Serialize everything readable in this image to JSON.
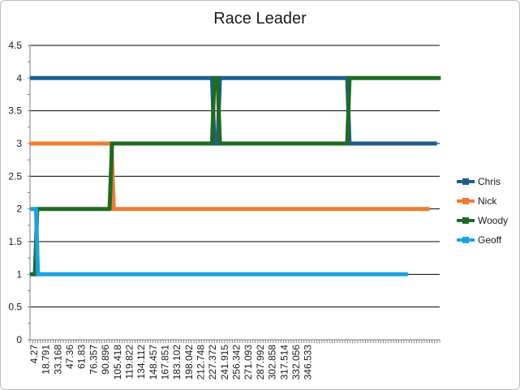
{
  "chart_data": {
    "type": "line",
    "title": "Race Leader",
    "xlabel": "",
    "ylabel": "",
    "ylim": [
      0,
      4.5
    ],
    "yticks": [
      "0",
      "0.5",
      "1",
      "1.5",
      "2",
      "2.5",
      "3",
      "3.5",
      "4",
      "4.5"
    ],
    "x_tick_labels": [
      "4.27",
      "18.791",
      "33.168",
      "47.36",
      "61.83",
      "76.357",
      "90.896",
      "105.418",
      "119.822",
      "134.112",
      "148.457",
      "167.851",
      "183.102",
      "198.042",
      "212.748",
      "227.372",
      "241.915",
      "256.342",
      "271.093",
      "287.992",
      "302.858",
      "317.514",
      "332.056",
      "346.533"
    ],
    "grid": true,
    "legend_position": "right",
    "series": [
      {
        "name": "Chris",
        "color": "#1f5f8b",
        "points": [
          [
            4.27,
            4
          ],
          [
            163.5,
            4
          ],
          [
            165.5,
            3
          ],
          [
            168.3,
            3
          ],
          [
            170.4,
            4
          ],
          [
            281.7,
            4
          ],
          [
            283.8,
            3
          ],
          [
            360.2,
            3
          ]
        ]
      },
      {
        "name": "Nick",
        "color": "#ed7d31",
        "points": [
          [
            4.27,
            3
          ],
          [
            75.5,
            3
          ],
          [
            77.6,
            2
          ],
          [
            353.9,
            2
          ]
        ]
      },
      {
        "name": "Woody",
        "color": "#1e6b24",
        "points": [
          [
            4.27,
            1
          ],
          [
            8.5,
            1
          ],
          [
            10.6,
            2
          ],
          [
            73.9,
            2
          ],
          [
            76.0,
            3
          ],
          [
            163.5,
            3
          ],
          [
            165.5,
            4
          ],
          [
            168.3,
            4
          ],
          [
            170.4,
            3
          ],
          [
            281.7,
            3
          ],
          [
            283.8,
            4
          ],
          [
            363.5,
            4
          ]
        ]
      },
      {
        "name": "Geoff",
        "color": "#1ba1e2",
        "points": [
          [
            4.27,
            2
          ],
          [
            9.5,
            2
          ],
          [
            11.2,
            1
          ],
          [
            334.8,
            1
          ]
        ]
      }
    ]
  }
}
